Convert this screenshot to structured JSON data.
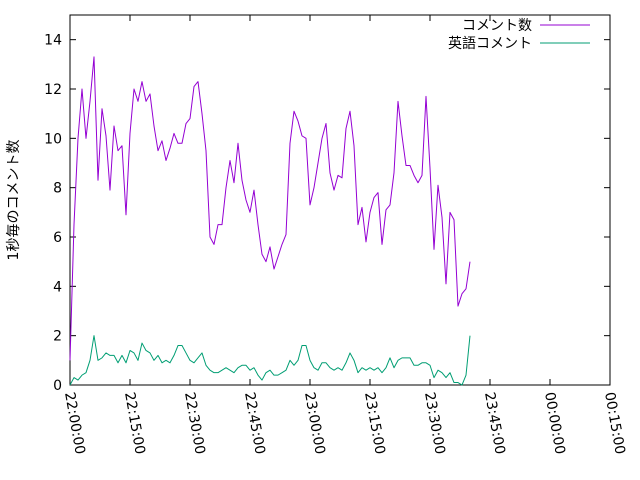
{
  "chart_data": {
    "type": "line",
    "ylabel": "1秒毎のコメント数",
    "xlabel": "",
    "title": "",
    "xlim": [
      "22:00:00",
      "00:15:00"
    ],
    "ylim": [
      0,
      15
    ],
    "x_ticks": [
      "22:00:00",
      "22:15:00",
      "22:30:00",
      "22:45:00",
      "23:00:00",
      "23:15:00",
      "23:30:00",
      "23:45:00",
      "00:00:00",
      "00:15:00"
    ],
    "y_ticks": [
      0,
      2,
      4,
      6,
      8,
      10,
      12,
      14
    ],
    "grid": false,
    "legend_position": "top-right",
    "sample_interval_seconds": 60,
    "series": [
      {
        "name": "コメント数",
        "color": "#9400d3",
        "start_time": "22:00:00",
        "values": [
          1.0,
          6.5,
          10.0,
          12.0,
          10.0,
          11.5,
          13.3,
          8.3,
          11.2,
          10.1,
          7.9,
          10.5,
          9.5,
          9.7,
          6.9,
          10.2,
          12.0,
          11.5,
          12.3,
          11.5,
          11.8,
          10.5,
          9.5,
          9.9,
          9.1,
          9.6,
          10.2,
          9.8,
          9.8,
          10.6,
          10.8,
          12.1,
          12.3,
          11.0,
          9.5,
          6.0,
          5.7,
          6.5,
          6.5,
          8.0,
          9.1,
          8.2,
          9.8,
          8.3,
          7.5,
          7.0,
          7.9,
          6.5,
          5.3,
          5.0,
          5.6,
          4.7,
          5.2,
          5.7,
          6.1,
          9.8,
          11.1,
          10.7,
          10.1,
          10.0,
          7.3,
          8.0,
          9.0,
          10.0,
          10.6,
          8.6,
          7.9,
          8.5,
          8.4,
          10.4,
          11.1,
          9.7,
          6.5,
          7.2,
          5.8,
          7.0,
          7.6,
          7.8,
          5.7,
          7.1,
          7.3,
          8.6,
          11.5,
          10.1,
          8.9,
          8.9,
          8.5,
          8.2,
          8.5,
          11.7,
          8.8,
          5.5,
          8.1,
          6.8,
          4.1,
          7.0,
          6.7,
          3.2,
          3.7,
          3.9,
          5.0
        ]
      },
      {
        "name": "英語コメント",
        "color": "#009e73",
        "start_time": "22:00:00",
        "values": [
          0.0,
          0.3,
          0.2,
          0.4,
          0.5,
          1.0,
          2.0,
          1.0,
          1.1,
          1.3,
          1.2,
          1.2,
          0.9,
          1.2,
          0.9,
          1.4,
          1.3,
          1.0,
          1.7,
          1.4,
          1.3,
          1.0,
          1.2,
          0.9,
          1.0,
          0.9,
          1.2,
          1.6,
          1.6,
          1.3,
          1.0,
          0.9,
          1.1,
          1.3,
          0.8,
          0.6,
          0.5,
          0.5,
          0.6,
          0.7,
          0.6,
          0.5,
          0.7,
          0.8,
          0.8,
          0.6,
          0.7,
          0.4,
          0.2,
          0.5,
          0.6,
          0.4,
          0.4,
          0.5,
          0.6,
          1.0,
          0.8,
          1.0,
          1.6,
          1.6,
          1.0,
          0.7,
          0.6,
          0.9,
          0.9,
          0.7,
          0.6,
          0.7,
          0.6,
          0.9,
          1.3,
          1.0,
          0.5,
          0.7,
          0.6,
          0.7,
          0.6,
          0.7,
          0.5,
          0.7,
          1.1,
          0.7,
          1.0,
          1.1,
          1.1,
          1.1,
          0.8,
          0.8,
          0.9,
          0.9,
          0.8,
          0.3,
          0.6,
          0.5,
          0.3,
          0.5,
          0.1,
          0.1,
          0.0,
          0.4,
          2.0
        ]
      }
    ]
  }
}
